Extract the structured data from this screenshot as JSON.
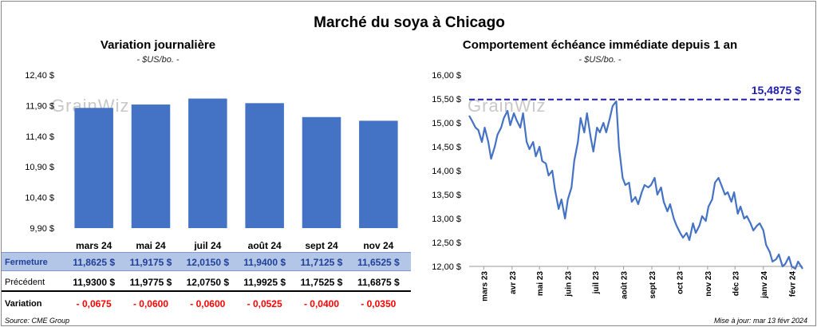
{
  "main_title": "Marché du soya à Chicago",
  "left_panel": {
    "title": "Variation  journalière",
    "unit": "- $US/bo. -"
  },
  "right_panel": {
    "title": "Comportement  échéance immédiate depuis 1 an",
    "unit": "- $US/bo. -"
  },
  "watermark": "GrainWiz",
  "table": {
    "rows": [
      {
        "label": "Fermeture",
        "values": [
          "11,8625  $",
          "11,9175  $",
          "12,0150  $",
          "11,9400  $",
          "11,7125  $",
          "11,6525  $"
        ]
      },
      {
        "label": "Précédent",
        "values": [
          "11,9300  $",
          "11,9775  $",
          "12,0750  $",
          "11,9925  $",
          "11,7525  $",
          "11,6875  $"
        ]
      },
      {
        "label": "Variation",
        "values": [
          "- 0,0675",
          "- 0,0600",
          "- 0,0600",
          "- 0,0525",
          "- 0,0400",
          "- 0,0350"
        ]
      }
    ]
  },
  "footer": {
    "source": "Source: CME Group",
    "updated": "Mise à jour: mar 13 févr 2024"
  },
  "colors": {
    "bar": "#4472c4",
    "line": "#4472c4",
    "max_line": "#1f1fa8",
    "negative": "#ff0000",
    "close_row": "#b4c6e7"
  },
  "chart_data": [
    {
      "type": "bar",
      "title": "Variation  journalière",
      "subtitle": "- $US/bo. -",
      "categories": [
        "mars 24",
        "mai 24",
        "juil 24",
        "août 24",
        "sept 24",
        "nov 24"
      ],
      "values": [
        11.8625,
        11.9175,
        12.015,
        11.94,
        11.7125,
        11.6525
      ],
      "ylim": [
        9.9,
        12.4
      ],
      "yticks": [
        9.9,
        10.4,
        10.9,
        11.4,
        11.9,
        12.4
      ],
      "ytick_labels": [
        "9,90 $",
        "10,40 $",
        "10,90 $",
        "11,40 $",
        "11,90 $",
        "12,40 $"
      ],
      "grid": false
    },
    {
      "type": "line",
      "title": "Comportement  échéance immédiate depuis 1 an",
      "subtitle": "- $US/bo. -",
      "xlim": [
        "2023-02-13",
        "2024-02-13"
      ],
      "ylim": [
        12.0,
        16.0
      ],
      "yticks": [
        12.0,
        12.5,
        13.0,
        13.5,
        14.0,
        14.5,
        15.0,
        15.5,
        16.0
      ],
      "ytick_labels": [
        "12,00 $",
        "12,50 $",
        "13,00 $",
        "13,50 $",
        "14,00 $",
        "14,50 $",
        "15,00 $",
        "15,50 $",
        "16,00 $"
      ],
      "xticks": [
        "2023-03-01",
        "2023-04-01",
        "2023-05-01",
        "2023-06-01",
        "2023-07-01",
        "2023-08-01",
        "2023-09-01",
        "2023-10-01",
        "2023-11-01",
        "2023-12-01",
        "2024-01-01",
        "2024-02-01"
      ],
      "xtick_labels": [
        "mars 23",
        "avr 23",
        "mai 23",
        "juin 23",
        "juil 23",
        "août 23",
        "sept 23",
        "oct 23",
        "nov 23",
        "déc 23",
        "janv 24",
        "févr 24"
      ],
      "reference_line": {
        "value": 15.4875,
        "label": "15,4875 $"
      },
      "x": [
        "2023-02-13",
        "2023-02-16",
        "2023-02-20",
        "2023-02-23",
        "2023-02-27",
        "2023-03-02",
        "2023-03-06",
        "2023-03-09",
        "2023-03-13",
        "2023-03-16",
        "2023-03-20",
        "2023-03-23",
        "2023-03-27",
        "2023-03-30",
        "2023-04-03",
        "2023-04-06",
        "2023-04-10",
        "2023-04-13",
        "2023-04-17",
        "2023-04-20",
        "2023-04-24",
        "2023-04-27",
        "2023-05-01",
        "2023-05-04",
        "2023-05-08",
        "2023-05-11",
        "2023-05-15",
        "2023-05-18",
        "2023-05-22",
        "2023-05-25",
        "2023-05-29",
        "2023-06-01",
        "2023-06-05",
        "2023-06-08",
        "2023-06-12",
        "2023-06-15",
        "2023-06-19",
        "2023-06-22",
        "2023-06-26",
        "2023-06-29",
        "2023-07-03",
        "2023-07-06",
        "2023-07-10",
        "2023-07-13",
        "2023-07-17",
        "2023-07-20",
        "2023-07-24",
        "2023-07-27",
        "2023-07-31",
        "2023-08-03",
        "2023-08-07",
        "2023-08-10",
        "2023-08-14",
        "2023-08-17",
        "2023-08-21",
        "2023-08-24",
        "2023-08-28",
        "2023-08-31",
        "2023-09-04",
        "2023-09-07",
        "2023-09-11",
        "2023-09-14",
        "2023-09-18",
        "2023-09-21",
        "2023-09-25",
        "2023-09-28",
        "2023-10-02",
        "2023-10-05",
        "2023-10-09",
        "2023-10-12",
        "2023-10-16",
        "2023-10-19",
        "2023-10-23",
        "2023-10-26",
        "2023-10-30",
        "2023-11-02",
        "2023-11-06",
        "2023-11-09",
        "2023-11-13",
        "2023-11-16",
        "2023-11-20",
        "2023-11-23",
        "2023-11-27",
        "2023-11-30",
        "2023-12-04",
        "2023-12-07",
        "2023-12-11",
        "2023-12-14",
        "2023-12-18",
        "2023-12-21",
        "2023-12-25",
        "2023-12-28",
        "2024-01-01",
        "2024-01-04",
        "2024-01-08",
        "2024-01-11",
        "2024-01-15",
        "2024-01-18",
        "2024-01-22",
        "2024-01-25",
        "2024-01-29",
        "2024-02-01",
        "2024-02-05",
        "2024-02-08",
        "2024-02-13"
      ],
      "y": [
        15.15,
        15.05,
        14.9,
        14.85,
        14.6,
        14.9,
        14.6,
        14.25,
        14.5,
        14.75,
        14.9,
        15.1,
        15.25,
        14.95,
        15.2,
        15.05,
        14.9,
        15.2,
        14.6,
        14.45,
        14.6,
        14.3,
        14.5,
        14.2,
        14.15,
        13.9,
        14.0,
        13.6,
        13.2,
        13.4,
        13.0,
        13.4,
        13.65,
        14.2,
        14.6,
        15.1,
        14.8,
        15.2,
        14.7,
        14.4,
        14.9,
        14.8,
        15.0,
        14.8,
        15.1,
        15.35,
        15.45,
        14.5,
        13.85,
        13.7,
        13.75,
        13.35,
        13.45,
        13.3,
        13.55,
        13.7,
        13.65,
        13.7,
        13.85,
        13.5,
        13.65,
        13.35,
        13.15,
        13.3,
        13.0,
        12.85,
        12.7,
        12.6,
        12.7,
        12.55,
        12.9,
        12.7,
        12.85,
        13.05,
        12.95,
        13.25,
        13.4,
        13.75,
        13.85,
        13.7,
        13.5,
        13.55,
        13.35,
        13.55,
        13.1,
        13.25,
        13.0,
        13.05,
        12.9,
        12.75,
        12.85,
        12.9,
        12.75,
        12.45,
        12.3,
        12.1,
        12.15,
        12.25,
        12.0,
        12.05,
        12.2,
        12.0,
        11.95,
        12.1,
        11.95
      ]
    }
  ]
}
